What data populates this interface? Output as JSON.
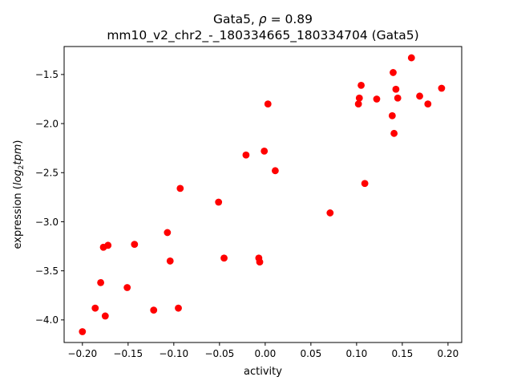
{
  "chart_data": {
    "type": "scatter",
    "title_line1_prefix": "Gata5, ",
    "title_line1_rho": "ρ",
    "title_line1_suffix": " = 0.89",
    "title_line2": "mm10_v2_chr2_-_180334665_180334704 (Gata5)",
    "xlabel": "activity",
    "ylabel_prefix": "expression (",
    "ylabel_log": "log",
    "ylabel_sub": "2",
    "ylabel_tpm": "tpm",
    "ylabel_suffix": ")",
    "xlim": [
      -0.22,
      0.215
    ],
    "ylim": [
      -4.23,
      -1.215
    ],
    "xticks": [
      -0.2,
      -0.15,
      -0.1,
      -0.05,
      0.0,
      0.05,
      0.1,
      0.15,
      0.2
    ],
    "xtick_labels": [
      "−0.20",
      "−0.15",
      "−0.10",
      "−0.05",
      "0.00",
      "0.05",
      "0.10",
      "0.15",
      "0.20"
    ],
    "yticks": [
      -4.0,
      -3.5,
      -3.0,
      -2.5,
      -2.0,
      -1.5
    ],
    "ytick_labels": [
      "−4.0",
      "−3.5",
      "−3.0",
      "−2.5",
      "−2.0",
      "−1.5"
    ],
    "marker_color": "#ff0000",
    "grid": false,
    "points": [
      {
        "x": -0.2,
        "y": -4.12
      },
      {
        "x": -0.186,
        "y": -3.88
      },
      {
        "x": -0.18,
        "y": -3.62
      },
      {
        "x": -0.177,
        "y": -3.26
      },
      {
        "x": -0.175,
        "y": -3.96
      },
      {
        "x": -0.172,
        "y": -3.24
      },
      {
        "x": -0.151,
        "y": -3.67
      },
      {
        "x": -0.143,
        "y": -3.23
      },
      {
        "x": -0.122,
        "y": -3.9
      },
      {
        "x": -0.107,
        "y": -3.11
      },
      {
        "x": -0.104,
        "y": -3.4
      },
      {
        "x": -0.095,
        "y": -3.88
      },
      {
        "x": -0.093,
        "y": -2.66
      },
      {
        "x": -0.051,
        "y": -2.8
      },
      {
        "x": -0.045,
        "y": -3.37
      },
      {
        "x": -0.021,
        "y": -2.32
      },
      {
        "x": -0.007,
        "y": -3.37
      },
      {
        "x": -0.006,
        "y": -3.41
      },
      {
        "x": -0.001,
        "y": -2.28
      },
      {
        "x": 0.003,
        "y": -1.8
      },
      {
        "x": 0.011,
        "y": -2.48
      },
      {
        "x": 0.071,
        "y": -2.91
      },
      {
        "x": 0.102,
        "y": -1.8
      },
      {
        "x": 0.103,
        "y": -1.74
      },
      {
        "x": 0.105,
        "y": -1.61
      },
      {
        "x": 0.109,
        "y": -2.61
      },
      {
        "x": 0.122,
        "y": -1.75
      },
      {
        "x": 0.139,
        "y": -1.92
      },
      {
        "x": 0.14,
        "y": -1.48
      },
      {
        "x": 0.141,
        "y": -2.1
      },
      {
        "x": 0.143,
        "y": -1.65
      },
      {
        "x": 0.145,
        "y": -1.74
      },
      {
        "x": 0.16,
        "y": -1.33
      },
      {
        "x": 0.169,
        "y": -1.72
      },
      {
        "x": 0.178,
        "y": -1.8
      },
      {
        "x": 0.193,
        "y": -1.64
      }
    ]
  }
}
